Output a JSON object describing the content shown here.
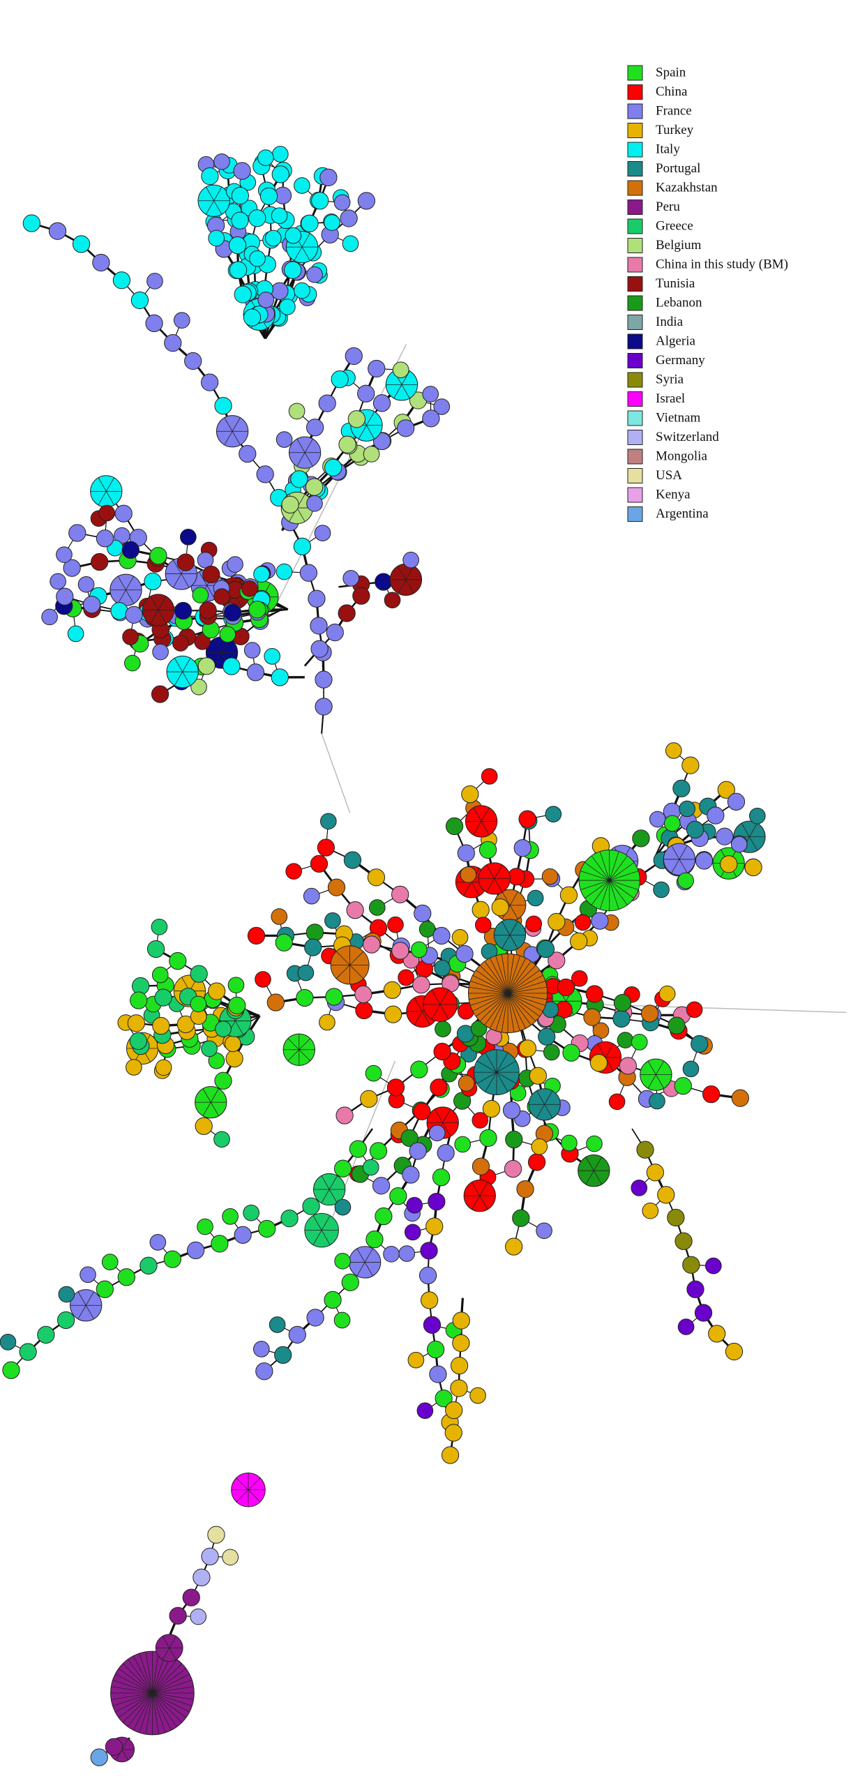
{
  "legend": {
    "items": [
      {
        "label": "Spain",
        "color": "#1fe01f"
      },
      {
        "label": "China",
        "color": "#ff0000"
      },
      {
        "label": "France",
        "color": "#7f7fee"
      },
      {
        "label": "Turkey",
        "color": "#e6b300"
      },
      {
        "label": "Italy",
        "color": "#00f0f0"
      },
      {
        "label": "Portugal",
        "color": "#1a8a8a"
      },
      {
        "label": "Kazakhstan",
        "color": "#d4700a"
      },
      {
        "label": "Peru",
        "color": "#8a1a8a"
      },
      {
        "label": "Greece",
        "color": "#19cc6a"
      },
      {
        "label": "Belgium",
        "color": "#b0e07a"
      },
      {
        "label": "China in this study (BM)",
        "color": "#e87aaa"
      },
      {
        "label": "Tunisia",
        "color": "#991010"
      },
      {
        "label": "Lebanon",
        "color": "#1a9a1a"
      },
      {
        "label": "India",
        "color": "#7fa6a6"
      },
      {
        "label": "Algeria",
        "color": "#0a0a8a"
      },
      {
        "label": "Germany",
        "color": "#6a00cc"
      },
      {
        "label": "Syria",
        "color": "#8a8a0a"
      },
      {
        "label": "Israel",
        "color": "#ff00ff"
      },
      {
        "label": "Vietnam",
        "color": "#80e6e0"
      },
      {
        "label": "Switzerland",
        "color": "#b0b0f5"
      },
      {
        "label": "Mongolia",
        "color": "#c08080"
      },
      {
        "label": "USA",
        "color": "#e6e0a0"
      },
      {
        "label": "Kenya",
        "color": "#e8a0e8"
      },
      {
        "label": "Argentina",
        "color": "#6aa6e6"
      }
    ]
  }
}
